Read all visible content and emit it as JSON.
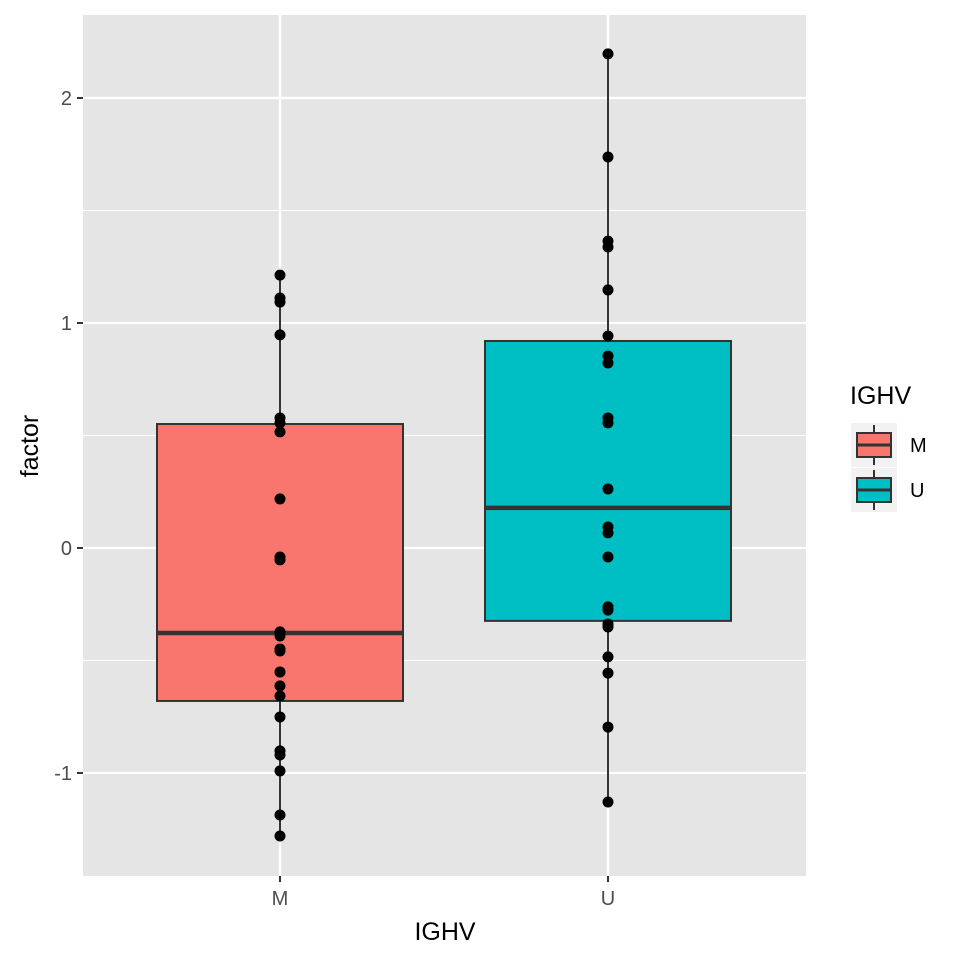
{
  "chart_data": {
    "type": "box",
    "title": "",
    "xlabel": "IGHV",
    "ylabel": "factor",
    "categories": [
      "M",
      "U"
    ],
    "ylim": [
      -1.458,
      2.369
    ],
    "yticks": [
      -1,
      0,
      1,
      2
    ],
    "ytick_labels": [
      "-1",
      "0",
      "1",
      "2"
    ],
    "grid": true,
    "legend": {
      "title": "IGHV",
      "placement": "right",
      "entries": [
        "M",
        "U"
      ]
    },
    "colors": {
      "M": "#F8766D",
      "U": "#00BFC4",
      "panel": "#E5E5E5",
      "grid": "#FFFFFF",
      "points": "#000000"
    },
    "series": [
      {
        "name": "M",
        "box": {
          "lower_whisker": -1.28,
          "q1": -0.68,
          "median": -0.378,
          "q3": 0.551,
          "upper_whisker": 1.213
        },
        "points": [
          1.213,
          1.111,
          1.093,
          0.947,
          0.578,
          0.556,
          0.516,
          0.218,
          -0.04,
          -0.053,
          -0.373,
          -0.391,
          -0.449,
          -0.458,
          -0.551,
          -0.613,
          -0.658,
          -0.751,
          -0.902,
          -0.92,
          -0.991,
          -1.187,
          -1.28
        ]
      },
      {
        "name": "U",
        "box": {
          "lower_whisker": -1.129,
          "q1": -0.324,
          "median": 0.178,
          "q3": 0.92,
          "upper_whisker": 2.196
        },
        "points": [
          2.196,
          1.738,
          1.364,
          1.338,
          1.147,
          0.942,
          0.853,
          0.822,
          0.578,
          0.556,
          0.262,
          0.093,
          0.067,
          -0.04,
          -0.262,
          -0.276,
          -0.338,
          -0.351,
          -0.484,
          -0.556,
          -0.796,
          -1.129
        ]
      }
    ]
  }
}
